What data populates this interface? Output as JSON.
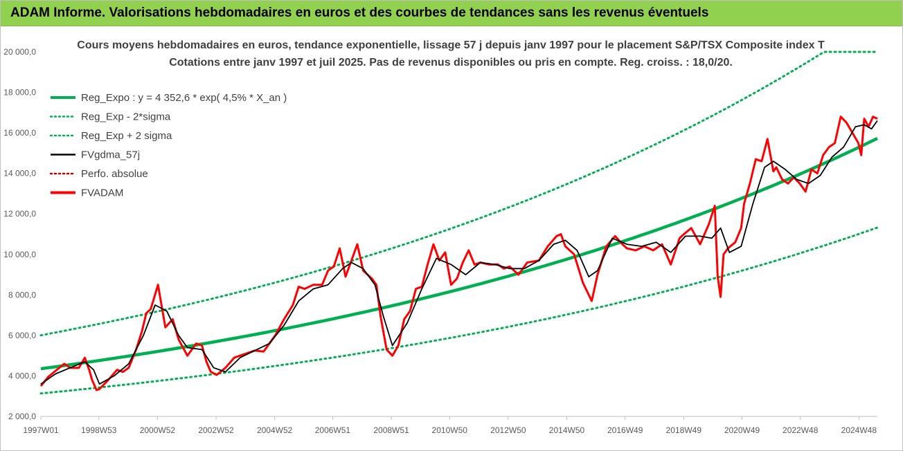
{
  "banner": {
    "title": "ADAM Informe. Valorisations hebdomadaires en euros et des courbes de tendances sans les revenus éventuels"
  },
  "colors": {
    "banner_bg": "#92d050",
    "trend": "#00b050",
    "band": "#00b050",
    "smoothed": "#000000",
    "absolute": "#c00000",
    "fvadam": "#ff0000"
  },
  "chart_data": {
    "type": "line",
    "title": "Cours moyens hebdomadaires en euros, tendance exponentielle, lissage 57 j depuis janv 1997 pour le placement S&P/TSX Composite index T",
    "subtitle": "Cotations entre janv 1997 et juil 2025. Pas de revenus disponibles ou pris en compte. Reg. croiss. : 18,0/20.",
    "xlabel": "",
    "ylabel": "",
    "x_range": [
      1997.0,
      2025.55
    ],
    "ylim": [
      2000,
      20000
    ],
    "y_ticks": [
      2000,
      4000,
      6000,
      8000,
      10000,
      12000,
      14000,
      16000,
      18000,
      20000
    ],
    "y_tick_labels": [
      "2 000,0",
      "4 000,0",
      "6 000,0",
      "8 000,0",
      "10 000,0",
      "12 000,0",
      "14 000,0",
      "16 000,0",
      "18 000,0",
      "20 000,0"
    ],
    "x_ticks": [
      1997.0,
      1998.98,
      2000.98,
      2002.98,
      2004.98,
      2006.96,
      2008.96,
      2010.95,
      2012.95,
      2014.95,
      2016.94,
      2018.94,
      2020.93,
      2022.92,
      2024.92
    ],
    "x_tick_labels": [
      "1997W01",
      "1998W53",
      "2000W52",
      "2002W52",
      "2004W52",
      "2006W51",
      "2008W51",
      "2010W50",
      "2012W50",
      "2014W50",
      "2016W49",
      "2018W49",
      "2020W49",
      "2022W48",
      "2024W48"
    ],
    "grid": false,
    "legend_position": "top-left",
    "legend": [
      {
        "label": "Reg_Expo : y = 4 352,6 * exp( 4,5% *  X_an )",
        "style": "solid-thick",
        "color": "#00b050"
      },
      {
        "label": "Reg_Exp - 2*sigma",
        "style": "dotted",
        "color": "#00b050"
      },
      {
        "label": "Reg_Exp + 2 sigma",
        "style": "dotted",
        "color": "#00b050"
      },
      {
        "label": "FVgdma_57j",
        "style": "solid",
        "color": "#000000"
      },
      {
        "label": "Perfo. absolue",
        "style": "dotted",
        "color": "#c00000"
      },
      {
        "label": "FVADAM",
        "style": "solid-thick",
        "color": "#ff0000"
      }
    ],
    "trend": {
      "a": 4352.6,
      "rate": 0.045,
      "x0": 1997.0,
      "band_low_factor": 0.72,
      "band_high_factor": 1.38
    },
    "series": [
      {
        "name": "FVADAM",
        "x": [
          1997.0,
          1997.25,
          1997.5,
          1997.8,
          1998.0,
          1998.3,
          1998.5,
          1998.65,
          1998.75,
          1998.9,
          1999.0,
          1999.3,
          1999.6,
          1999.8,
          2000.0,
          2000.25,
          2000.45,
          2000.6,
          2000.75,
          2001.0,
          2001.25,
          2001.5,
          2001.7,
          2002.0,
          2002.3,
          2002.5,
          2002.65,
          2002.8,
          2003.0,
          2003.3,
          2003.6,
          2004.0,
          2004.3,
          2004.6,
          2005.0,
          2005.3,
          2005.6,
          2005.8,
          2006.0,
          2006.3,
          2006.6,
          2006.8,
          2007.0,
          2007.2,
          2007.4,
          2007.6,
          2007.8,
          2008.0,
          2008.3,
          2008.45,
          2008.6,
          2008.8,
          2009.0,
          2009.2,
          2009.4,
          2009.6,
          2009.8,
          2010.0,
          2010.2,
          2010.4,
          2010.6,
          2010.8,
          2011.0,
          2011.2,
          2011.4,
          2011.6,
          2011.8,
          2012.0,
          2012.3,
          2012.6,
          2012.8,
          2013.0,
          2013.3,
          2013.6,
          2014.0,
          2014.3,
          2014.6,
          2014.75,
          2014.9,
          2015.2,
          2015.5,
          2015.8,
          2016.0,
          2016.3,
          2016.6,
          2016.85,
          2017.0,
          2017.3,
          2017.6,
          2017.9,
          2018.2,
          2018.5,
          2018.8,
          2018.95,
          2019.2,
          2019.5,
          2019.8,
          2020.0,
          2020.1,
          2020.2,
          2020.3,
          2020.45,
          2020.7,
          2020.9,
          2021.0,
          2021.2,
          2021.4,
          2021.6,
          2021.8,
          2022.0,
          2022.1,
          2022.3,
          2022.5,
          2022.7,
          2022.9,
          2023.1,
          2023.3,
          2023.5,
          2023.7,
          2023.9,
          2024.1,
          2024.3,
          2024.5,
          2024.7,
          2024.9,
          2025.0,
          2025.1,
          2025.25,
          2025.4,
          2025.55
        ],
        "values": [
          3500,
          3950,
          4250,
          4600,
          4400,
          4400,
          4900,
          4300,
          3800,
          3300,
          3350,
          3800,
          4300,
          4200,
          4400,
          5300,
          6200,
          7100,
          7300,
          8500,
          6400,
          6800,
          5800,
          5000,
          5600,
          5500,
          4700,
          4200,
          4050,
          4400,
          4900,
          5100,
          5250,
          5200,
          6000,
          6800,
          7500,
          8400,
          8300,
          8500,
          8500,
          9200,
          9400,
          10300,
          8900,
          9700,
          10500,
          9200,
          8800,
          8500,
          6900,
          5300,
          5000,
          5500,
          6800,
          7200,
          8300,
          8400,
          9500,
          10500,
          9700,
          10100,
          8500,
          8800,
          9600,
          10200,
          9500,
          9600,
          9500,
          9500,
          9300,
          9400,
          9000,
          9600,
          9700,
          10400,
          10900,
          11000,
          10400,
          10000,
          8600,
          7700,
          9000,
          10400,
          10900,
          10500,
          10300,
          10200,
          10400,
          10200,
          10500,
          9500,
          10800,
          11000,
          11300,
          10500,
          11500,
          12400,
          8900,
          7900,
          10000,
          10300,
          10600,
          11300,
          12500,
          13500,
          14700,
          14600,
          15700,
          14100,
          14300,
          13700,
          13500,
          13800,
          13500,
          13100,
          14200,
          14000,
          14900,
          15300,
          15500,
          16800,
          16500,
          16000,
          15500,
          14900,
          16700,
          16300,
          16800,
          16700
        ]
      },
      {
        "name": "FVgdma_57j",
        "x": [
          1997.0,
          1997.5,
          1998.0,
          1998.5,
          1998.8,
          1999.0,
          1999.5,
          2000.0,
          2000.5,
          2000.9,
          2001.3,
          2001.7,
          2002.0,
          2002.5,
          2002.9,
          2003.3,
          2003.8,
          2004.3,
          2004.8,
          2005.3,
          2005.8,
          2006.3,
          2006.8,
          2007.3,
          2007.6,
          2008.0,
          2008.4,
          2008.7,
          2009.0,
          2009.5,
          2010.0,
          2010.5,
          2011.0,
          2011.5,
          2012.0,
          2012.5,
          2013.0,
          2013.5,
          2014.0,
          2014.5,
          2014.9,
          2015.3,
          2015.7,
          2016.0,
          2016.5,
          2017.0,
          2017.5,
          2018.0,
          2018.5,
          2019.0,
          2019.5,
          2019.9,
          2020.2,
          2020.5,
          2020.9,
          2021.3,
          2021.7,
          2022.0,
          2022.4,
          2022.8,
          2023.2,
          2023.6,
          2024.0,
          2024.4,
          2024.8,
          2025.1,
          2025.35,
          2025.55
        ],
        "values": [
          3600,
          4100,
          4400,
          4700,
          4300,
          3600,
          4000,
          4600,
          6000,
          7500,
          7200,
          6000,
          5400,
          5300,
          4400,
          4200,
          4900,
          5250,
          5600,
          6500,
          7700,
          8300,
          8500,
          9300,
          9600,
          9300,
          8500,
          6900,
          5500,
          6600,
          8300,
          9800,
          9500,
          9000,
          9600,
          9500,
          9300,
          9300,
          9700,
          10500,
          10700,
          10200,
          8900,
          9200,
          10800,
          10500,
          10400,
          10600,
          10100,
          10900,
          10900,
          10800,
          11300,
          10100,
          10400,
          12500,
          14300,
          14600,
          14200,
          13700,
          13500,
          13900,
          14800,
          15300,
          16300,
          16400,
          16200,
          16600
        ]
      }
    ]
  }
}
